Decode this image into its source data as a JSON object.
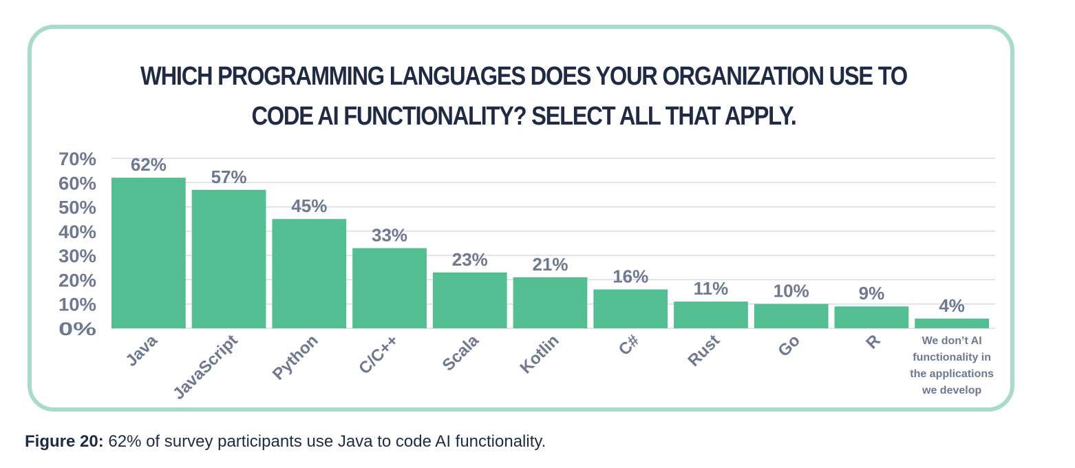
{
  "chart_data": {
    "type": "bar",
    "title": "WHICH PROGRAMMING LANGUAGES DOES YOUR ORGANIZATION USE TO CODE AI FUNCTIONALITY? SELECT ALL THAT APPLY.",
    "categories": [
      "Java",
      "JavaScript",
      "Python",
      "C/C++",
      "Scala",
      "Kotlin",
      "C#",
      "Rust",
      "Go",
      "R",
      "We don’t AI functionality in the applications we develop"
    ],
    "values": [
      62,
      57,
      45,
      33,
      23,
      21,
      16,
      11,
      10,
      9,
      4
    ],
    "data_labels": [
      "62%",
      "57%",
      "45%",
      "33%",
      "23%",
      "21%",
      "16%",
      "11%",
      "10%",
      "9%",
      "4%"
    ],
    "yticks": [
      0,
      10,
      20,
      30,
      40,
      50,
      60,
      70
    ],
    "ytick_labels": [
      "0%",
      "10%",
      "20%",
      "30%",
      "40%",
      "50%",
      "60%",
      "70%"
    ],
    "ylim": [
      0,
      70
    ],
    "xlabel": "",
    "ylabel": "",
    "grid": true,
    "legend": "none",
    "colors": {
      "bar": "#52be92",
      "grid": "#d7dce3",
      "tick_text": "#6f7891",
      "title_text": "#1f2a44"
    }
  },
  "caption": {
    "label": "Figure 20:",
    "text": " 62% of survey participants use Java to code AI functionality."
  }
}
